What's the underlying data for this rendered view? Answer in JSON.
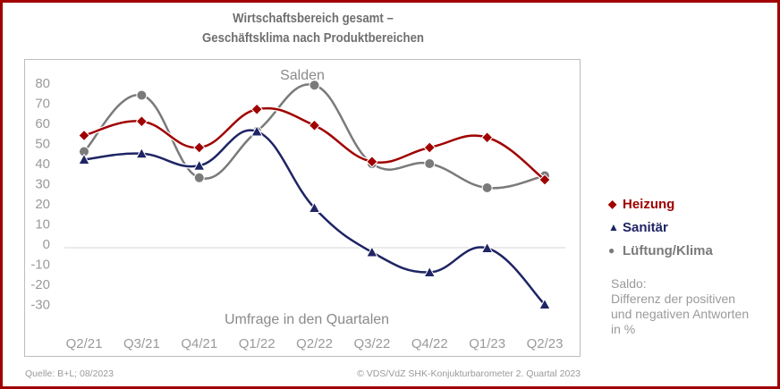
{
  "chart_data": {
    "type": "line",
    "title": "Wirtschaftsbereich gesamt –",
    "title_line2": "Geschäftsklima nach Produktbereichen",
    "subtitle": "Salden",
    "xlabel": "Umfrage in den Quartalen",
    "ylabel": "",
    "categories": [
      "Q2/21",
      "Q3/21",
      "Q4/21",
      "Q1/22",
      "Q2/22",
      "Q3/22",
      "Q4/22",
      "Q1/23",
      "Q2/23"
    ],
    "yticks": [
      "80",
      "70",
      "60",
      "50",
      "40",
      "30",
      "20",
      "10",
      "0",
      "-10",
      "-20",
      "-30"
    ],
    "ylim": [
      -30,
      80
    ],
    "grid": "zero-line-only",
    "smooth": true,
    "legend_position": "right",
    "series": [
      {
        "name": "Heizung",
        "marker": "diamond",
        "color": "#a00000",
        "values": [
          54,
          61,
          48,
          67,
          59,
          41,
          48,
          53,
          32
        ]
      },
      {
        "name": "Sanitär",
        "marker": "triangle",
        "color": "#1e2464",
        "values": [
          42,
          45,
          39,
          56,
          18,
          -4,
          -14,
          -2,
          -30
        ]
      },
      {
        "name": "Lüftung/Klima",
        "marker": "circle",
        "color": "#7a7a7a",
        "values": [
          46,
          74,
          33,
          56,
          79,
          40,
          40,
          28,
          34
        ]
      }
    ]
  },
  "legend": {
    "items": [
      {
        "symbol": "◆",
        "label": "Heizung",
        "color": "#a00000"
      },
      {
        "symbol": "▲",
        "label": "Sanitär",
        "color": "#1e2464"
      },
      {
        "symbol": "●",
        "label": "Lüftung/Klima",
        "color": "#7a7a7a"
      }
    ]
  },
  "note": {
    "line1": "Saldo:",
    "line2": "Differenz der positiven",
    "line3": "und negativen Antworten",
    "line4": "in %"
  },
  "footer": {
    "source": "Quelle: B+L; 08/2023",
    "copyright": "© VDS/VdZ SHK-Konjukturbarometer 2. Quartal 2023"
  },
  "colors": {
    "border": "#a00000",
    "text_gray": "#9a9a9a"
  }
}
